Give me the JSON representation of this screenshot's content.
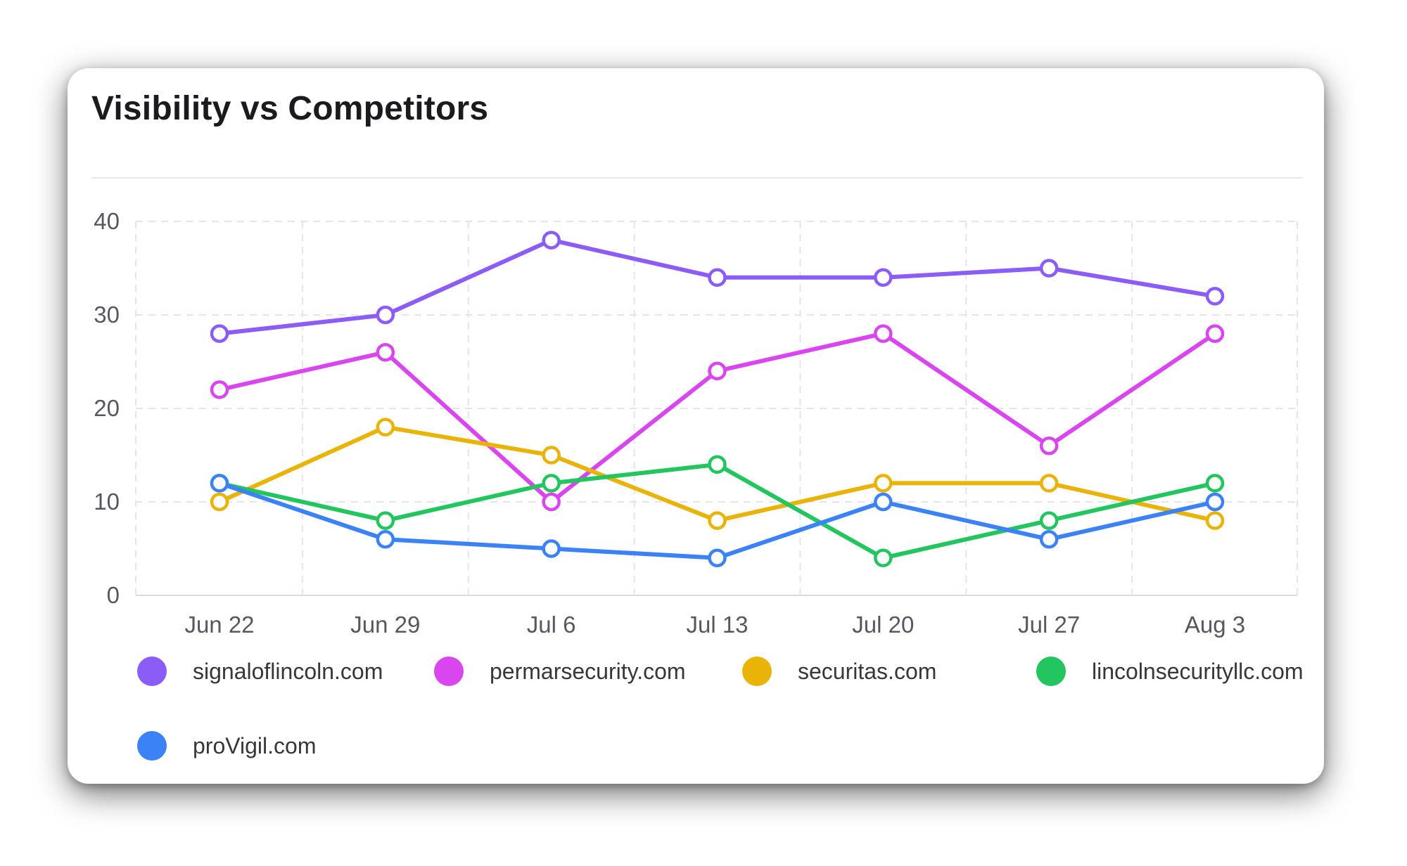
{
  "card": {
    "title": "Visibility vs Competitors"
  },
  "chart_data": {
    "type": "line",
    "title": "Visibility vs Competitors",
    "xlabel": "",
    "ylabel": "",
    "categories": [
      "Jun 22",
      "Jun 29",
      "Jul 6",
      "Jul 13",
      "Jul 20",
      "Jul 27",
      "Aug 3"
    ],
    "ylim": [
      0,
      40
    ],
    "yticks": [
      0,
      10,
      20,
      30,
      40
    ],
    "grid": true,
    "legend_position": "bottom",
    "series": [
      {
        "name": "signaloflincoln.com",
        "color": "#8b5cf6",
        "values": [
          28,
          30,
          38,
          34,
          34,
          35,
          32
        ]
      },
      {
        "name": "permarsecurity.com",
        "color": "#d946ef",
        "values": [
          22,
          26,
          10,
          24,
          28,
          16,
          28
        ]
      },
      {
        "name": "securitas.com",
        "color": "#eab308",
        "values": [
          10,
          18,
          15,
          8,
          12,
          12,
          8
        ]
      },
      {
        "name": "lincolnsecurityllc.com",
        "color": "#22c55e",
        "values": [
          12,
          8,
          12,
          14,
          4,
          8,
          12
        ]
      },
      {
        "name": "proVigil.com",
        "color": "#3b82f6",
        "values": [
          12,
          6,
          5,
          4,
          10,
          6,
          10
        ]
      }
    ]
  }
}
